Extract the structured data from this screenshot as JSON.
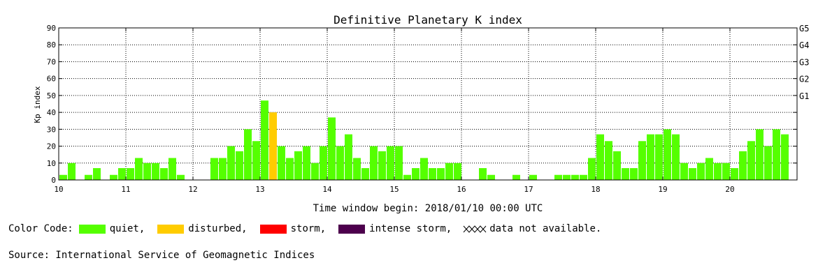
{
  "chart_data": {
    "type": "bar",
    "title": "Definitive Planetary K index",
    "ylabel": "Kp index",
    "xlabel": "Time window begin: 2018/01/10 00:00 UTC",
    "ylim": [
      0,
      90
    ],
    "yticks": [
      0,
      10,
      20,
      30,
      40,
      50,
      60,
      70,
      80,
      90
    ],
    "g_scale": [
      {
        "label": "G1",
        "value": 50
      },
      {
        "label": "G2",
        "value": 60
      },
      {
        "label": "G3",
        "value": 70
      },
      {
        "label": "G4",
        "value": 80
      },
      {
        "label": "G5",
        "value": 90
      }
    ],
    "day_labels": [
      "10",
      "11",
      "12",
      "13",
      "14",
      "15",
      "16",
      "17",
      "18",
      "19",
      "20"
    ],
    "bars_per_day": 8,
    "grid": true,
    "values": [
      3,
      10,
      0,
      3,
      7,
      0,
      3,
      7,
      7,
      13,
      10,
      10,
      7,
      13,
      3,
      0,
      0,
      0,
      13,
      13,
      20,
      17,
      30,
      23,
      47,
      40,
      20,
      13,
      17,
      20,
      10,
      20,
      37,
      20,
      27,
      13,
      7,
      20,
      17,
      20,
      20,
      3,
      7,
      13,
      7,
      7,
      10,
      10,
      0,
      0,
      7,
      3,
      0,
      0,
      3,
      0,
      3,
      0,
      0,
      3,
      3,
      3,
      3,
      13,
      27,
      23,
      17,
      7,
      7,
      23,
      27,
      27,
      30,
      27,
      10,
      7,
      10,
      13,
      10,
      10,
      7,
      17,
      23,
      30,
      20,
      30,
      27
    ],
    "status": [
      "quiet",
      "quiet",
      "quiet",
      "quiet",
      "quiet",
      "quiet",
      "quiet",
      "quiet",
      "quiet",
      "quiet",
      "quiet",
      "quiet",
      "quiet",
      "quiet",
      "quiet",
      "quiet",
      "quiet",
      "quiet",
      "quiet",
      "quiet",
      "quiet",
      "quiet",
      "quiet",
      "quiet",
      "quiet",
      "disturbed",
      "quiet",
      "quiet",
      "quiet",
      "quiet",
      "quiet",
      "quiet",
      "quiet",
      "quiet",
      "quiet",
      "quiet",
      "quiet",
      "quiet",
      "quiet",
      "quiet",
      "quiet",
      "quiet",
      "quiet",
      "quiet",
      "quiet",
      "quiet",
      "quiet",
      "quiet",
      "quiet",
      "quiet",
      "quiet",
      "quiet",
      "quiet",
      "quiet",
      "quiet",
      "quiet",
      "quiet",
      "quiet",
      "quiet",
      "quiet",
      "quiet",
      "quiet",
      "quiet",
      "quiet",
      "quiet",
      "quiet",
      "quiet",
      "quiet",
      "quiet",
      "quiet",
      "quiet",
      "quiet",
      "quiet",
      "quiet",
      "quiet",
      "quiet",
      "quiet",
      "quiet",
      "quiet",
      "quiet",
      "quiet",
      "quiet",
      "quiet",
      "quiet",
      "quiet",
      "quiet",
      "quiet"
    ]
  },
  "colors": {
    "quiet": "#55ff00",
    "disturbed": "#ffcc00",
    "storm": "#ff0000",
    "intense": "#4d004d"
  },
  "legend": {
    "label": "Color Code:",
    "quiet": "quiet,",
    "disturbed": "disturbed,",
    "storm": "storm,",
    "intense": "intense storm,",
    "nodata": "data not available."
  },
  "source": "Source: International Service of Geomagnetic Indices"
}
